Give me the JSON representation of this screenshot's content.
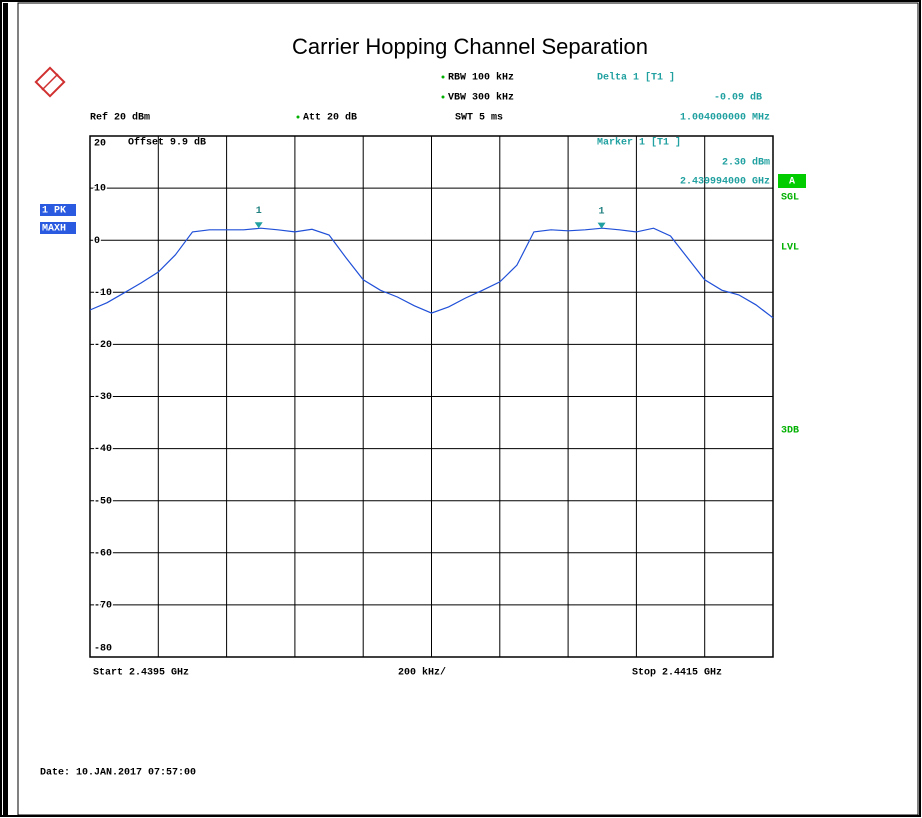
{
  "chart_data": {
    "type": "line",
    "title": "Carrier Hopping Channel Separation",
    "xlim": [
      2.4395,
      2.4415
    ],
    "ylim": [
      -80,
      20
    ],
    "yticks": [
      20,
      10,
      0,
      -10,
      -20,
      -30,
      -40,
      -50,
      -60,
      -70,
      -80
    ],
    "grid": true,
    "color": "#2050d8",
    "x": [
      2.4395,
      2.43955,
      2.4396,
      2.43965,
      2.4397,
      2.43975,
      2.4398,
      2.43985,
      2.4399,
      2.43995,
      2.44,
      2.44005,
      2.4401,
      2.44015,
      2.4402,
      2.44025,
      2.4403,
      2.44035,
      2.4404,
      2.44045,
      2.4405,
      2.44055,
      2.4406,
      2.44065,
      2.4407,
      2.44075,
      2.4408,
      2.44085,
      2.4409,
      2.44095,
      2.441,
      2.44105,
      2.4411,
      2.44115,
      2.4412,
      2.44125,
      2.4413,
      2.44135,
      2.4414,
      2.44145,
      2.4415
    ],
    "values": [
      -13.4,
      -12,
      -10.1,
      -8.2,
      -6.1,
      -2.8,
      1.6,
      2.0,
      2.0,
      2.0,
      2.3,
      2.0,
      1.6,
      2.1,
      1.0,
      -3.4,
      -7.6,
      -9.6,
      -10.9,
      -12.6,
      -14.0,
      -12.8,
      -11.1,
      -9.6,
      -8.0,
      -4.8,
      1.6,
      2.0,
      1.8,
      2.0,
      2.3,
      2.0,
      1.6,
      2.3,
      0.8,
      -3.4,
      -7.6,
      -9.6,
      -10.5,
      -12.4,
      -14.9
    ],
    "markers": [
      {
        "label": "1",
        "x": 2.439994,
        "value": 2.3
      },
      {
        "label": "1",
        "x": 2.440998,
        "value": 2.21
      }
    ],
    "annotations": [
      "RBW 100 kHz",
      "VBW 300 kHz",
      "SWT 5 ms",
      "Ref 20 dBm",
      "Att 20 dB",
      "Delta 1 [T1 ]",
      "-0.09 dB",
      "1.004000000 MHz",
      "Marker 1 [T1 ]",
      "2.30 dBm",
      "2.439994000 GHz",
      "Offset 9.9 dB",
      "1 PK",
      "MAXH",
      "A",
      "SGL",
      "LVL",
      "3DB",
      "Start 2.4395 GHz",
      "200 kHz/",
      "Stop 2.4415 GHz",
      "Date: 10.JAN.2017 07:57:00"
    ]
  }
}
